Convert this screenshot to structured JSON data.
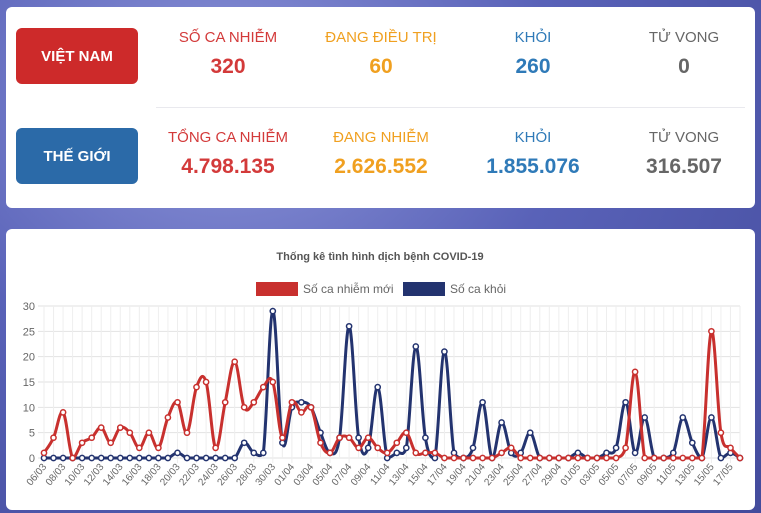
{
  "summary": {
    "vietnam": {
      "label": "VIỆT NAM",
      "stats": [
        {
          "label": "SỐ CA NHIỄM",
          "value": "320"
        },
        {
          "label": "ĐANG ĐIỀU TRỊ",
          "value": "60"
        },
        {
          "label": "KHỎI",
          "value": "260"
        },
        {
          "label": "TỬ VONG",
          "value": "0"
        }
      ]
    },
    "world": {
      "label": "THẾ GIỚI",
      "stats": [
        {
          "label": "TỔNG CA NHIỄM",
          "value": "4.798.135"
        },
        {
          "label": "ĐANG NHIỄM",
          "value": "2.626.552"
        },
        {
          "label": "KHỎI",
          "value": "1.855.076"
        },
        {
          "label": "TỬ VONG",
          "value": "316.507"
        }
      ]
    }
  },
  "colors": {
    "red": "#d33a3a",
    "orange": "#f0a020",
    "blue": "#2f7ab8",
    "gray": "#666666",
    "series_new": "#c8302e",
    "series_recovered": "#23336f"
  },
  "chart_data": {
    "type": "line",
    "title": "Thống kê tình hình dịch bệnh COVID-19",
    "ylim": [
      0,
      30
    ],
    "yticks": [
      0,
      5,
      10,
      15,
      20,
      25,
      30
    ],
    "grid": true,
    "legend": "top",
    "x": [
      "06/03",
      "07/03",
      "08/03",
      "09/03",
      "10/03",
      "11/03",
      "12/03",
      "13/03",
      "14/03",
      "15/03",
      "16/03",
      "17/03",
      "18/03",
      "19/03",
      "20/03",
      "21/03",
      "22/03",
      "23/03",
      "24/03",
      "25/03",
      "26/03",
      "27/03",
      "28/03",
      "29/03",
      "30/03",
      "31/03",
      "01/04",
      "02/04",
      "03/04",
      "04/04",
      "05/04",
      "06/04",
      "07/04",
      "08/04",
      "09/04",
      "10/04",
      "11/04",
      "12/04",
      "13/04",
      "14/04",
      "15/04",
      "16/04",
      "17/04",
      "18/04",
      "19/04",
      "20/04",
      "21/04",
      "22/04",
      "23/04",
      "24/04",
      "25/04",
      "26/04",
      "27/04",
      "28/04",
      "29/04",
      "30/04",
      "01/05",
      "02/05",
      "03/05",
      "04/05",
      "05/05",
      "06/05",
      "07/05",
      "08/05",
      "09/05",
      "10/05",
      "11/05",
      "12/05",
      "13/05",
      "14/05",
      "15/05",
      "16/05",
      "17/05",
      "18/05"
    ],
    "x_tick_labels": [
      "06/03",
      "08/03",
      "10/03",
      "12/03",
      "14/03",
      "16/03",
      "18/03",
      "20/03",
      "22/03",
      "24/03",
      "26/03",
      "28/03",
      "30/03",
      "01/04",
      "03/04",
      "05/04",
      "07/04",
      "09/04",
      "11/04",
      "13/04",
      "15/04",
      "17/04",
      "19/04",
      "21/04",
      "23/04",
      "25/04",
      "27/04",
      "29/04",
      "01/05",
      "03/05",
      "05/05",
      "07/05",
      "09/05",
      "11/05",
      "13/05",
      "15/05",
      "17/05"
    ],
    "series": [
      {
        "name": "Số ca nhiễm mới",
        "values": [
          1,
          4,
          9,
          0,
          3,
          4,
          6,
          3,
          6,
          5,
          2,
          5,
          2,
          8,
          11,
          5,
          14,
          15,
          2,
          11,
          19,
          10,
          11,
          14,
          15,
          4,
          11,
          9,
          10,
          3,
          1,
          4,
          4,
          2,
          4,
          2,
          1,
          3,
          5,
          1,
          1,
          1,
          0,
          0,
          0,
          0,
          0,
          0,
          1,
          2,
          0,
          0,
          0,
          0,
          0,
          0,
          0,
          0,
          0,
          0,
          0,
          2,
          17,
          0,
          0,
          0,
          0,
          0,
          0,
          0,
          25,
          5,
          2,
          0
        ]
      },
      {
        "name": "Số ca khỏi",
        "values": [
          0,
          0,
          0,
          0,
          0,
          0,
          0,
          0,
          0,
          0,
          0,
          0,
          0,
          0,
          1,
          0,
          0,
          0,
          0,
          0,
          0,
          3,
          1,
          1,
          29,
          3,
          10,
          11,
          10,
          5,
          1,
          4,
          26,
          4,
          2,
          14,
          0,
          1,
          2,
          22,
          4,
          0,
          21,
          1,
          0,
          2,
          11,
          0,
          7,
          1,
          1,
          5,
          0,
          0,
          0,
          0,
          1,
          0,
          0,
          1,
          2,
          11,
          1,
          8,
          0,
          0,
          1,
          8,
          3,
          0,
          8,
          0,
          1,
          0
        ]
      }
    ]
  }
}
